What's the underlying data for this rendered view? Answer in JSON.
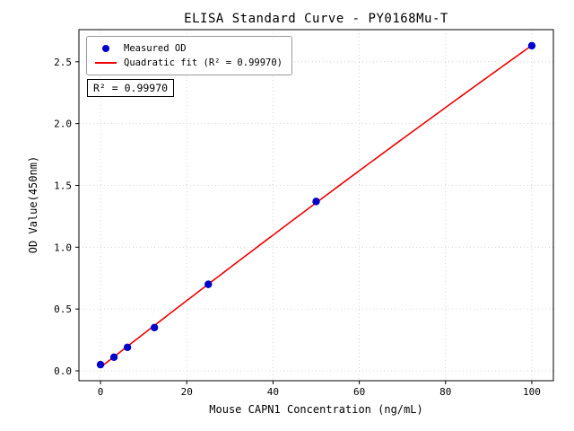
{
  "chart_data": {
    "type": "scatter",
    "title": "ELISA Standard Curve - PY0168Mu-T",
    "xlabel": "Mouse CAPN1 Concentration (ng/mL)",
    "ylabel": "OD Value(450nm)",
    "x_ticks": [
      0,
      20,
      40,
      60,
      80,
      100
    ],
    "y_ticks": [
      0.0,
      0.5,
      1.0,
      1.5,
      2.0,
      2.5
    ],
    "xlim": [
      -5,
      105
    ],
    "ylim": [
      -0.08,
      2.76
    ],
    "grid": true,
    "legend_position": "top-left",
    "annotation": "R² = 0.99970",
    "colors": {
      "points": "#0000cd",
      "fit_line": "#ee0000",
      "grid": "#c8c8c8",
      "axis": "#000000"
    },
    "series": [
      {
        "name": "Measured OD",
        "type": "scatter",
        "x": [
          0,
          3.125,
          6.25,
          12.5,
          25,
          50,
          100
        ],
        "y": [
          0.05,
          0.11,
          0.19,
          0.35,
          0.7,
          1.37,
          2.63
        ]
      },
      {
        "name": "Quadratic fit (R² = 0.99970)",
        "type": "quadratic-fit",
        "x_range": [
          0,
          100
        ]
      }
    ]
  }
}
